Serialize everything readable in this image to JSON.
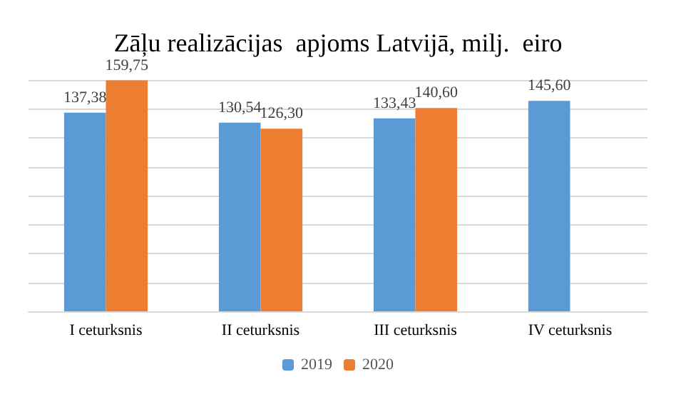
{
  "chart_data": {
    "type": "bar",
    "title": "Zāļu realizācijas  apjoms Latvijā, milj.  eiro",
    "categories": [
      "I ceturksnis",
      "II ceturksnis",
      "III ceturksnis",
      "IV ceturksnis"
    ],
    "series": [
      {
        "name": "2019",
        "color": "#5b9bd5",
        "values": [
          137.38,
          130.54,
          133.43,
          145.6
        ],
        "value_labels": [
          "137,38",
          "130,54",
          "133,43",
          "145,60"
        ]
      },
      {
        "name": "2020",
        "color": "#ed7d31",
        "values": [
          159.75,
          126.3,
          140.6,
          null
        ],
        "value_labels": [
          "159,75",
          "126,30",
          "140,60",
          null
        ]
      }
    ],
    "grid": "y",
    "tick_labels": "x",
    "legend": "bottom"
  }
}
